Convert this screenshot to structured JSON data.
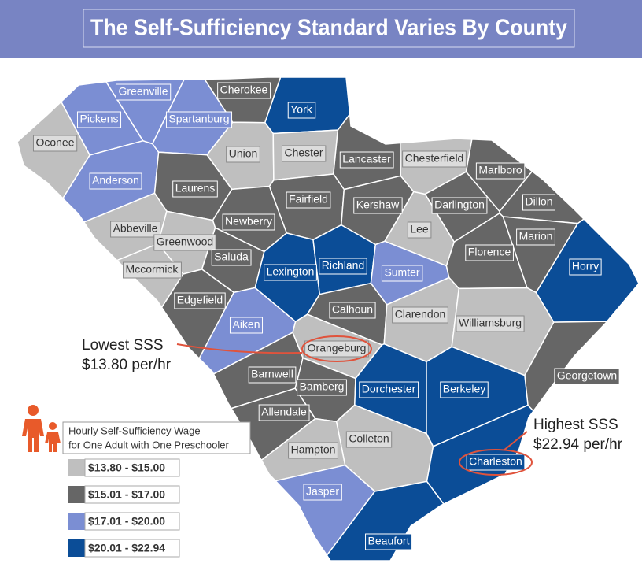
{
  "title": "The Self-Sufficiency Standard Varies By County",
  "counties": [
    {
      "name": "Greenville",
      "color": "#7b8ed3"
    },
    {
      "name": "Pickens",
      "color": "#7b8ed3"
    },
    {
      "name": "Oconee",
      "color": "#bfbfbf"
    },
    {
      "name": "Anderson",
      "color": "#7b8ed3"
    },
    {
      "name": "Spartanburg",
      "color": "#7b8ed3"
    },
    {
      "name": "Cherokee",
      "color": "#666666"
    },
    {
      "name": "York",
      "color": "#0b4d97"
    },
    {
      "name": "Union",
      "color": "#bfbfbf"
    },
    {
      "name": "Chester",
      "color": "#bfbfbf"
    },
    {
      "name": "Lancaster",
      "color": "#666666"
    },
    {
      "name": "Chesterfield",
      "color": "#bfbfbf"
    },
    {
      "name": "Marlboro",
      "color": "#666666"
    },
    {
      "name": "Dillon",
      "color": "#666666"
    },
    {
      "name": "Laurens",
      "color": "#666666"
    },
    {
      "name": "Fairfield",
      "color": "#666666"
    },
    {
      "name": "Kershaw",
      "color": "#666666"
    },
    {
      "name": "Darlington",
      "color": "#666666"
    },
    {
      "name": "Lee",
      "color": "#bfbfbf"
    },
    {
      "name": "Abbeville",
      "color": "#bfbfbf"
    },
    {
      "name": "Greenwood",
      "color": "#bfbfbf"
    },
    {
      "name": "Newberry",
      "color": "#666666"
    },
    {
      "name": "Saluda",
      "color": "#666666"
    },
    {
      "name": "Mccormick",
      "color": "#bfbfbf"
    },
    {
      "name": "Edgefield",
      "color": "#666666"
    },
    {
      "name": "Lexington",
      "color": "#0b4d97"
    },
    {
      "name": "Richland",
      "color": "#0b4d97"
    },
    {
      "name": "Sumter",
      "color": "#7b8ed3"
    },
    {
      "name": "Florence",
      "color": "#666666"
    },
    {
      "name": "Marion",
      "color": "#666666"
    },
    {
      "name": "Horry",
      "color": "#0b4d97"
    },
    {
      "name": "Aiken",
      "color": "#7b8ed3"
    },
    {
      "name": "Calhoun",
      "color": "#666666"
    },
    {
      "name": "Clarendon",
      "color": "#bfbfbf"
    },
    {
      "name": "Williamsburg",
      "color": "#bfbfbf"
    },
    {
      "name": "Orangeburg",
      "color": "#bfbfbf"
    },
    {
      "name": "Georgetown",
      "color": "#666666"
    },
    {
      "name": "Barnwell",
      "color": "#666666"
    },
    {
      "name": "Bamberg",
      "color": "#666666"
    },
    {
      "name": "Dorchester",
      "color": "#0b4d97"
    },
    {
      "name": "Berkeley",
      "color": "#0b4d97"
    },
    {
      "name": "Allendale",
      "color": "#666666"
    },
    {
      "name": "Colleton",
      "color": "#bfbfbf"
    },
    {
      "name": "Hampton",
      "color": "#bfbfbf"
    },
    {
      "name": "Charleston",
      "color": "#0b4d97"
    },
    {
      "name": "Jasper",
      "color": "#7b8ed3"
    },
    {
      "name": "Beaufort",
      "color": "#0b4d97"
    }
  ],
  "annotations": [
    {
      "label": "Lowest SSS",
      "value": "$13.80 per/hr"
    },
    {
      "label": "Highest SSS",
      "value": "$22.94 per/hr"
    }
  ],
  "legend": {
    "title": [
      "Hourly Self-Sufficiency Wage",
      "for One Adult with One Preschooler"
    ],
    "items": [
      {
        "label": "$13.80 - $15.00",
        "color": "#bfbfbf"
      },
      {
        "label": "$15.01 - $17.00",
        "color": "#666666"
      },
      {
        "label": "$17.01 - $20.00",
        "color": "#7b8ed3"
      },
      {
        "label": "$20.01 - $22.94",
        "color": "#0b4d97"
      }
    ]
  }
}
